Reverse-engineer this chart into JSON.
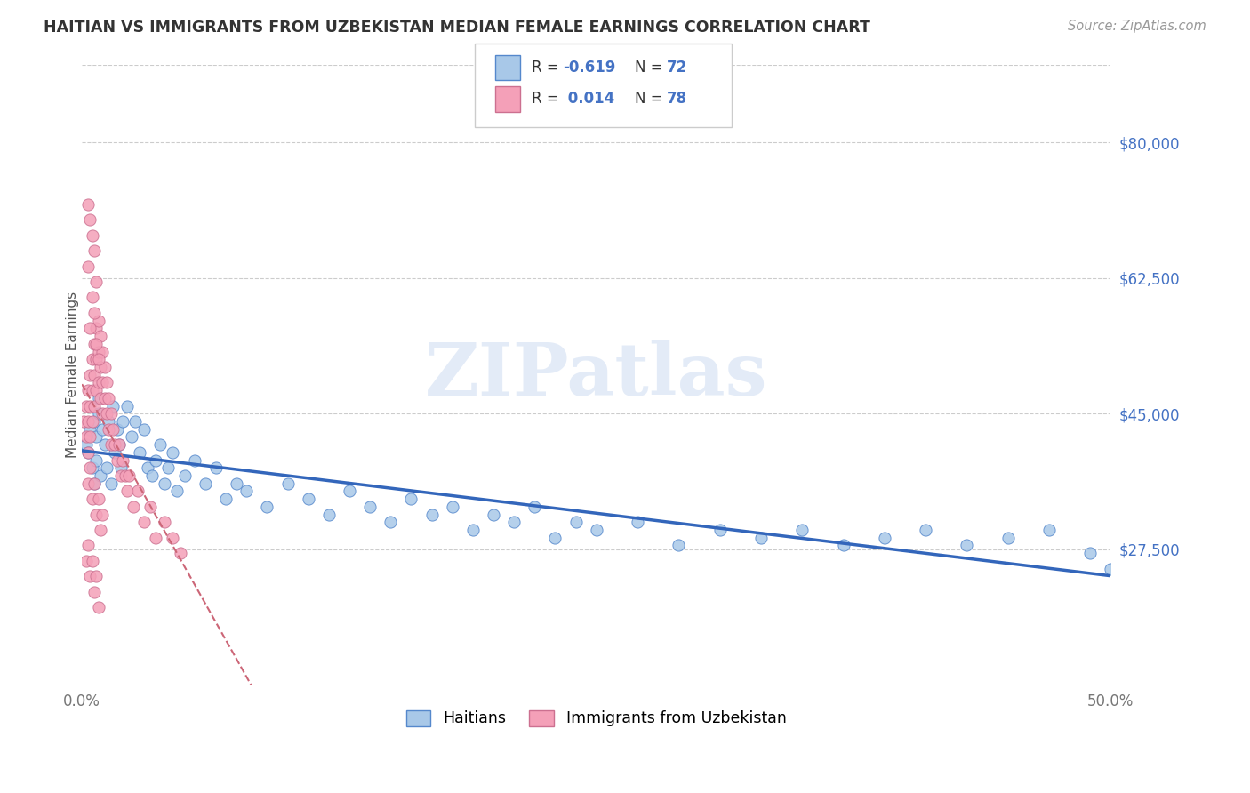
{
  "title": "HAITIAN VS IMMIGRANTS FROM UZBEKISTAN MEDIAN FEMALE EARNINGS CORRELATION CHART",
  "source": "Source: ZipAtlas.com",
  "ylabel": "Median Female Earnings",
  "xlim": [
    0,
    0.5
  ],
  "ylim": [
    10000,
    90000
  ],
  "yticks": [
    27500,
    45000,
    62500,
    80000
  ],
  "ytick_labels": [
    "$27,500",
    "$45,000",
    "$62,500",
    "$80,000"
  ],
  "color_blue": "#a8c8e8",
  "color_pink": "#f4a0b8",
  "edge_blue": "#5588cc",
  "edge_pink": "#cc7090",
  "trendline_blue": "#3366bb",
  "trendline_pink": "#cc6677",
  "r_color": "#4472c4",
  "background": "#ffffff",
  "grid_color": "#cccccc",
  "watermark_text": "ZIPatlas",
  "watermark_color": "#c8d8f0",
  "blue_x": [
    0.002,
    0.003,
    0.004,
    0.005,
    0.006,
    0.006,
    0.007,
    0.007,
    0.008,
    0.009,
    0.01,
    0.011,
    0.012,
    0.013,
    0.014,
    0.015,
    0.016,
    0.017,
    0.018,
    0.019,
    0.02,
    0.022,
    0.024,
    0.026,
    0.028,
    0.03,
    0.032,
    0.034,
    0.036,
    0.038,
    0.04,
    0.042,
    0.044,
    0.046,
    0.05,
    0.055,
    0.06,
    0.065,
    0.07,
    0.075,
    0.08,
    0.09,
    0.1,
    0.11,
    0.12,
    0.13,
    0.14,
    0.15,
    0.16,
    0.17,
    0.18,
    0.19,
    0.2,
    0.21,
    0.22,
    0.23,
    0.24,
    0.25,
    0.27,
    0.29,
    0.31,
    0.33,
    0.35,
    0.37,
    0.39,
    0.41,
    0.43,
    0.45,
    0.47,
    0.49,
    0.5,
    0.008
  ],
  "blue_y": [
    41000,
    40000,
    43000,
    38000,
    44000,
    36000,
    42000,
    39000,
    45000,
    37000,
    43000,
    41000,
    38000,
    44000,
    36000,
    46000,
    40000,
    43000,
    41000,
    38000,
    44000,
    46000,
    42000,
    44000,
    40000,
    43000,
    38000,
    37000,
    39000,
    41000,
    36000,
    38000,
    40000,
    35000,
    37000,
    39000,
    36000,
    38000,
    34000,
    36000,
    35000,
    33000,
    36000,
    34000,
    32000,
    35000,
    33000,
    31000,
    34000,
    32000,
    33000,
    30000,
    32000,
    31000,
    33000,
    29000,
    31000,
    30000,
    31000,
    28000,
    30000,
    29000,
    30000,
    28000,
    29000,
    30000,
    28000,
    29000,
    30000,
    27000,
    25000,
    47000
  ],
  "pink_x": [
    0.001,
    0.002,
    0.002,
    0.003,
    0.003,
    0.003,
    0.004,
    0.004,
    0.004,
    0.005,
    0.005,
    0.005,
    0.006,
    0.006,
    0.006,
    0.007,
    0.007,
    0.007,
    0.008,
    0.008,
    0.008,
    0.009,
    0.009,
    0.009,
    0.01,
    0.01,
    0.01,
    0.011,
    0.011,
    0.012,
    0.012,
    0.013,
    0.013,
    0.014,
    0.014,
    0.015,
    0.016,
    0.017,
    0.018,
    0.019,
    0.02,
    0.021,
    0.022,
    0.023,
    0.025,
    0.027,
    0.03,
    0.033,
    0.036,
    0.04,
    0.044,
    0.048,
    0.003,
    0.004,
    0.005,
    0.006,
    0.007,
    0.008,
    0.009,
    0.01,
    0.003,
    0.005,
    0.006,
    0.004,
    0.007,
    0.008,
    0.003,
    0.004,
    0.005,
    0.006,
    0.007,
    0.002,
    0.003,
    0.004,
    0.005,
    0.006,
    0.007,
    0.008
  ],
  "pink_y": [
    44000,
    46000,
    42000,
    48000,
    44000,
    40000,
    50000,
    46000,
    42000,
    52000,
    48000,
    44000,
    54000,
    50000,
    46000,
    56000,
    52000,
    48000,
    57000,
    53000,
    49000,
    55000,
    51000,
    47000,
    53000,
    49000,
    45000,
    51000,
    47000,
    49000,
    45000,
    47000,
    43000,
    45000,
    41000,
    43000,
    41000,
    39000,
    41000,
    37000,
    39000,
    37000,
    35000,
    37000,
    33000,
    35000,
    31000,
    33000,
    29000,
    31000,
    29000,
    27000,
    36000,
    38000,
    34000,
    36000,
    32000,
    34000,
    30000,
    32000,
    64000,
    60000,
    58000,
    56000,
    54000,
    52000,
    72000,
    70000,
    68000,
    66000,
    62000,
    26000,
    28000,
    24000,
    26000,
    22000,
    24000,
    20000
  ]
}
